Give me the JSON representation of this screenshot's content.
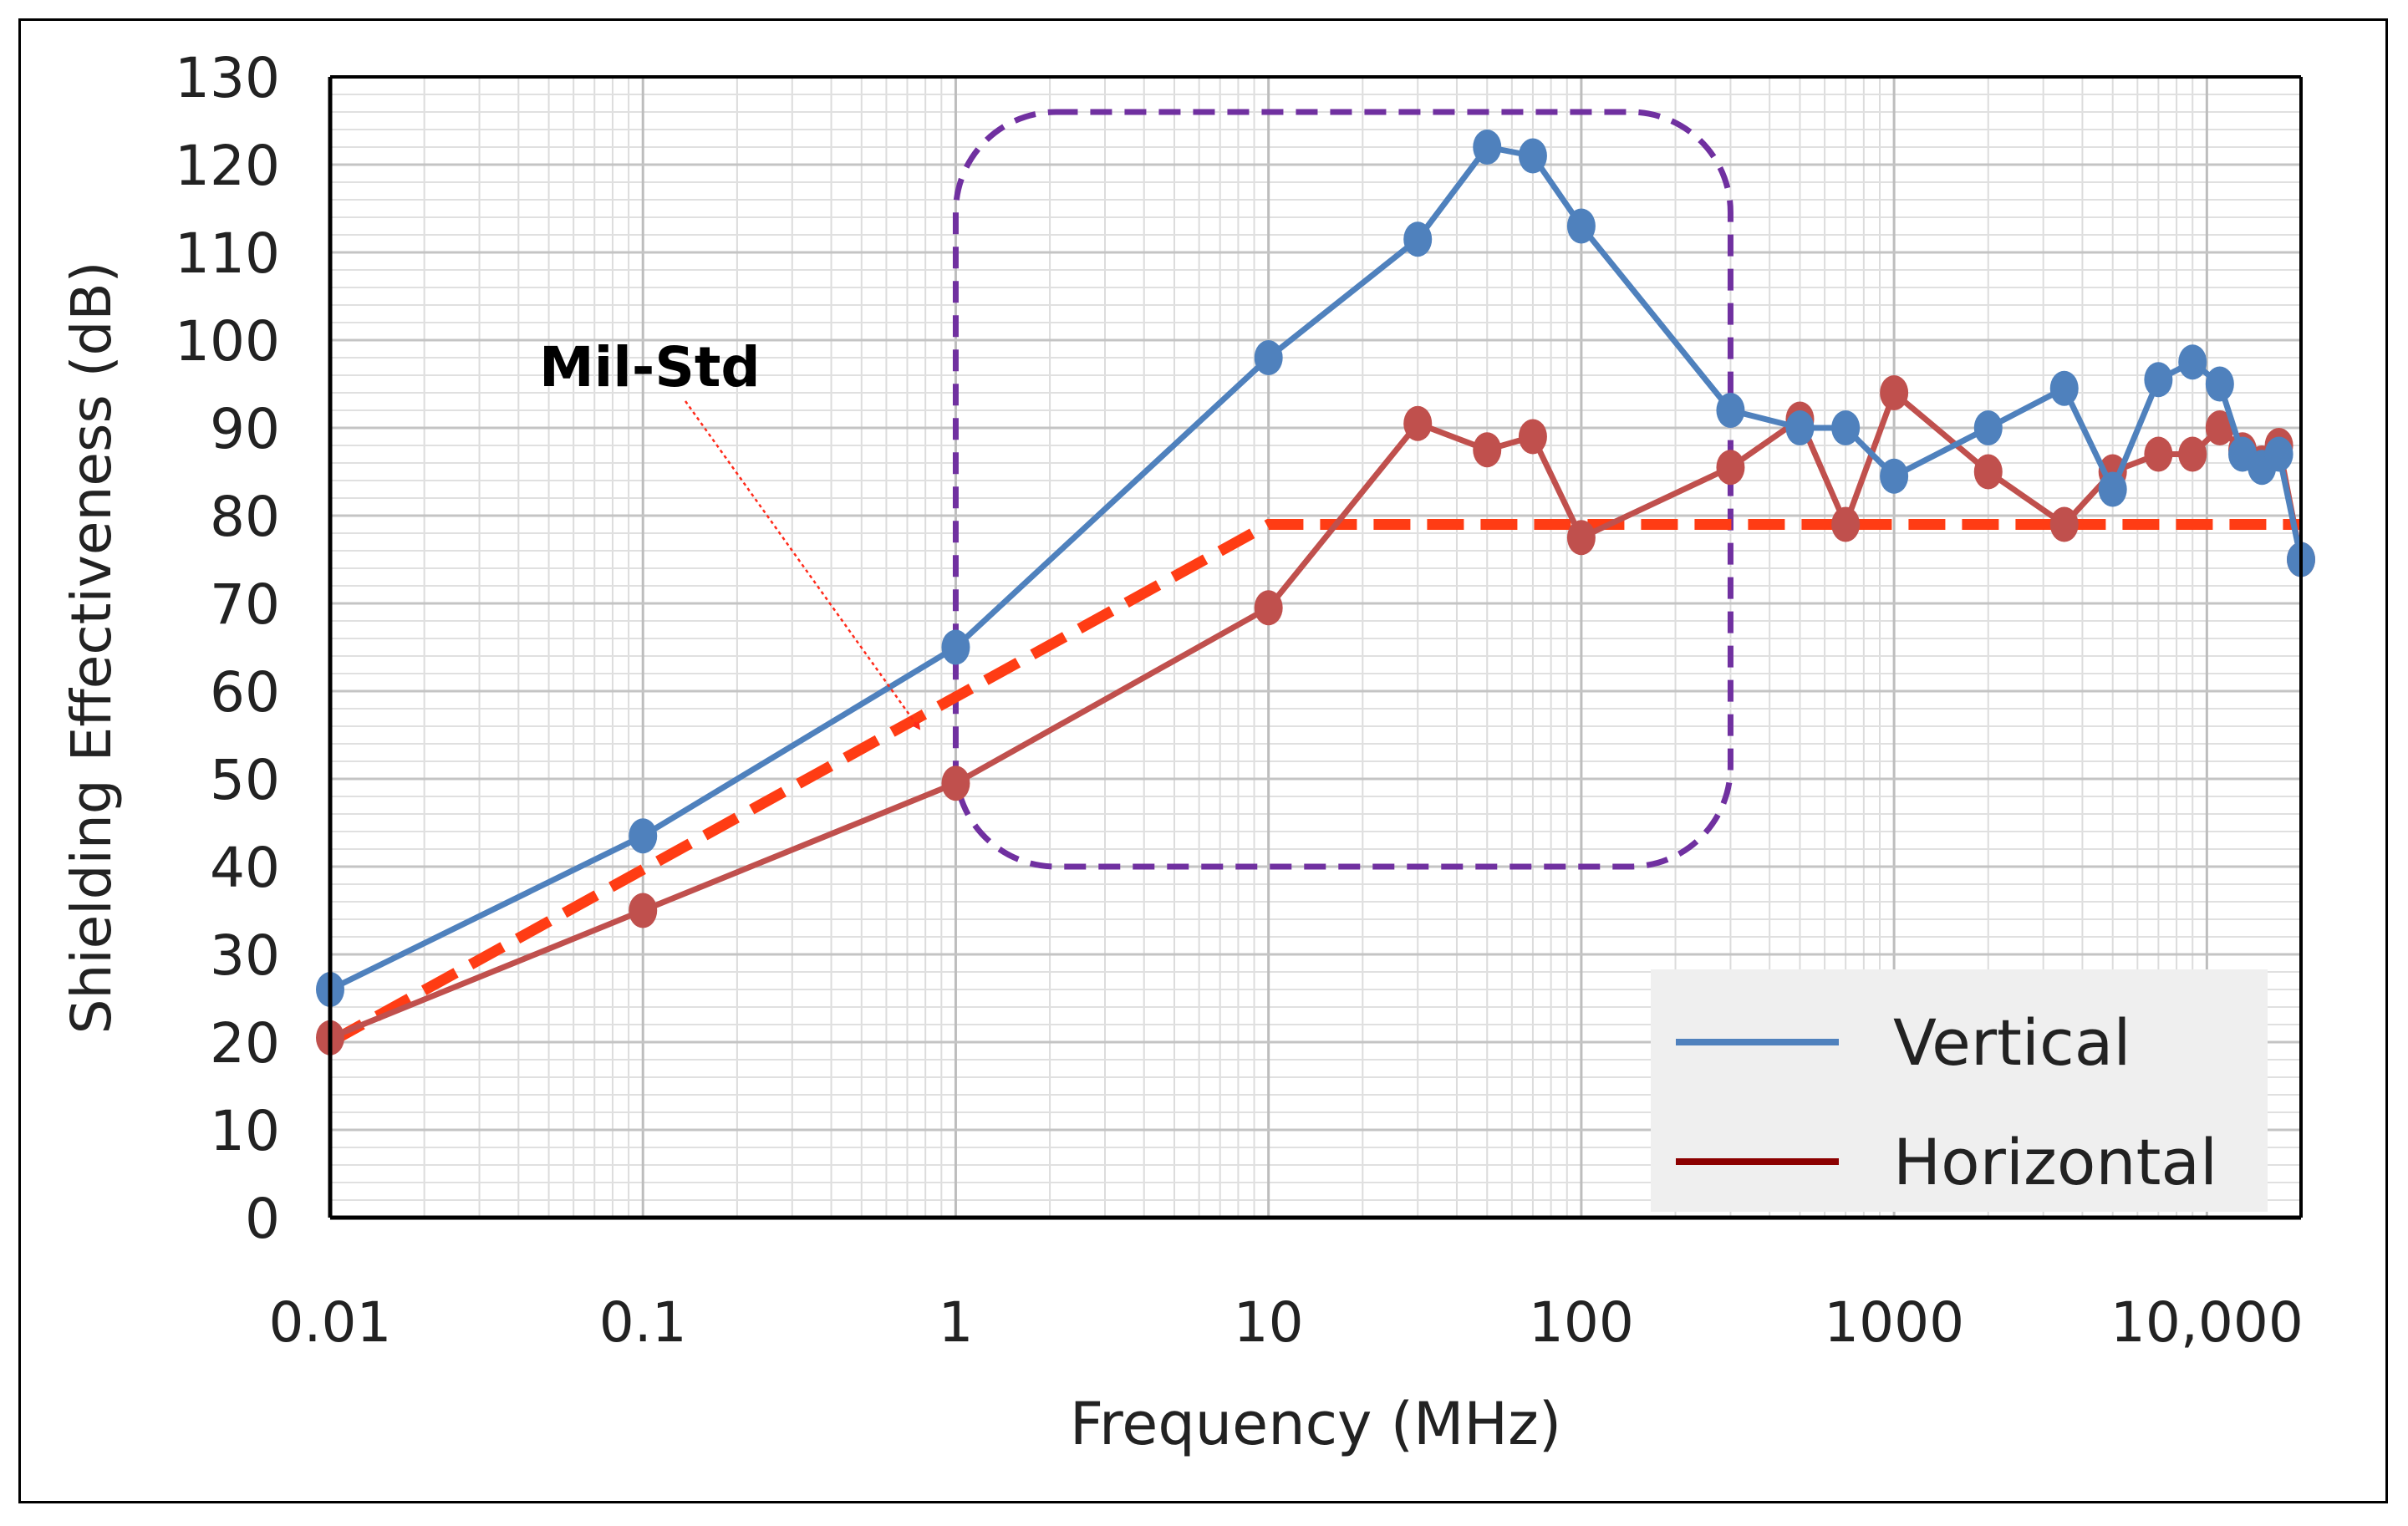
{
  "chart_data": {
    "type": "line",
    "title": "",
    "xlabel": "Frequency (MHz)",
    "ylabel": "Shielding Effectiveness (dB)",
    "xscale": "log",
    "xlim": [
      0.01,
      20000
    ],
    "ylim": [
      0,
      130
    ],
    "x_tick_values": [
      0.01,
      0.1,
      1,
      10,
      100,
      1000,
      10000
    ],
    "x_tick_labels": [
      "0.01",
      "0.1",
      "1",
      "10",
      "100",
      "1000",
      "10,000"
    ],
    "y_ticks": [
      0,
      10,
      20,
      30,
      40,
      50,
      60,
      70,
      80,
      90,
      100,
      110,
      120,
      130
    ],
    "grid": true,
    "legend_position": "bottom-right",
    "series": [
      {
        "name": "Vertical",
        "color": "#4f81bd",
        "x": [
          0.01,
          0.1,
          1,
          10,
          30,
          50,
          70,
          100,
          300,
          500,
          700,
          1000,
          2000,
          3500,
          5000,
          7000,
          9000,
          11000,
          13000,
          15000,
          17000,
          20000
        ],
        "y": [
          26,
          43.5,
          65,
          98,
          111.5,
          122,
          121,
          113,
          92,
          90,
          90,
          84.5,
          90,
          94.5,
          83,
          95.5,
          97.5,
          95,
          87,
          85.5,
          87,
          75
        ],
        "markers": true
      },
      {
        "name": "Horizontal",
        "color": "#c0504d",
        "legend_color": "#8b0000",
        "x": [
          0.01,
          0.1,
          1,
          10,
          30,
          50,
          70,
          100,
          300,
          500,
          700,
          1000,
          2000,
          3500,
          5000,
          7000,
          9000,
          11000,
          13000,
          15000,
          17000,
          20000
        ],
        "y": [
          20.5,
          35,
          49.5,
          69.5,
          90.5,
          87.5,
          89,
          77.5,
          85.5,
          91,
          79,
          94,
          85,
          79,
          85,
          87,
          87,
          90,
          87.5,
          86,
          88,
          75
        ],
        "markers": true
      }
    ],
    "mil_std": {
      "label": "Mil-Std",
      "color": "#ff3c14",
      "x": [
        0.01,
        10,
        20000
      ],
      "y": [
        20,
        79,
        79
      ]
    },
    "highlight_region": {
      "color": "#7030a0",
      "x_range": [
        1,
        300
      ],
      "y_range": [
        40,
        126
      ]
    }
  }
}
